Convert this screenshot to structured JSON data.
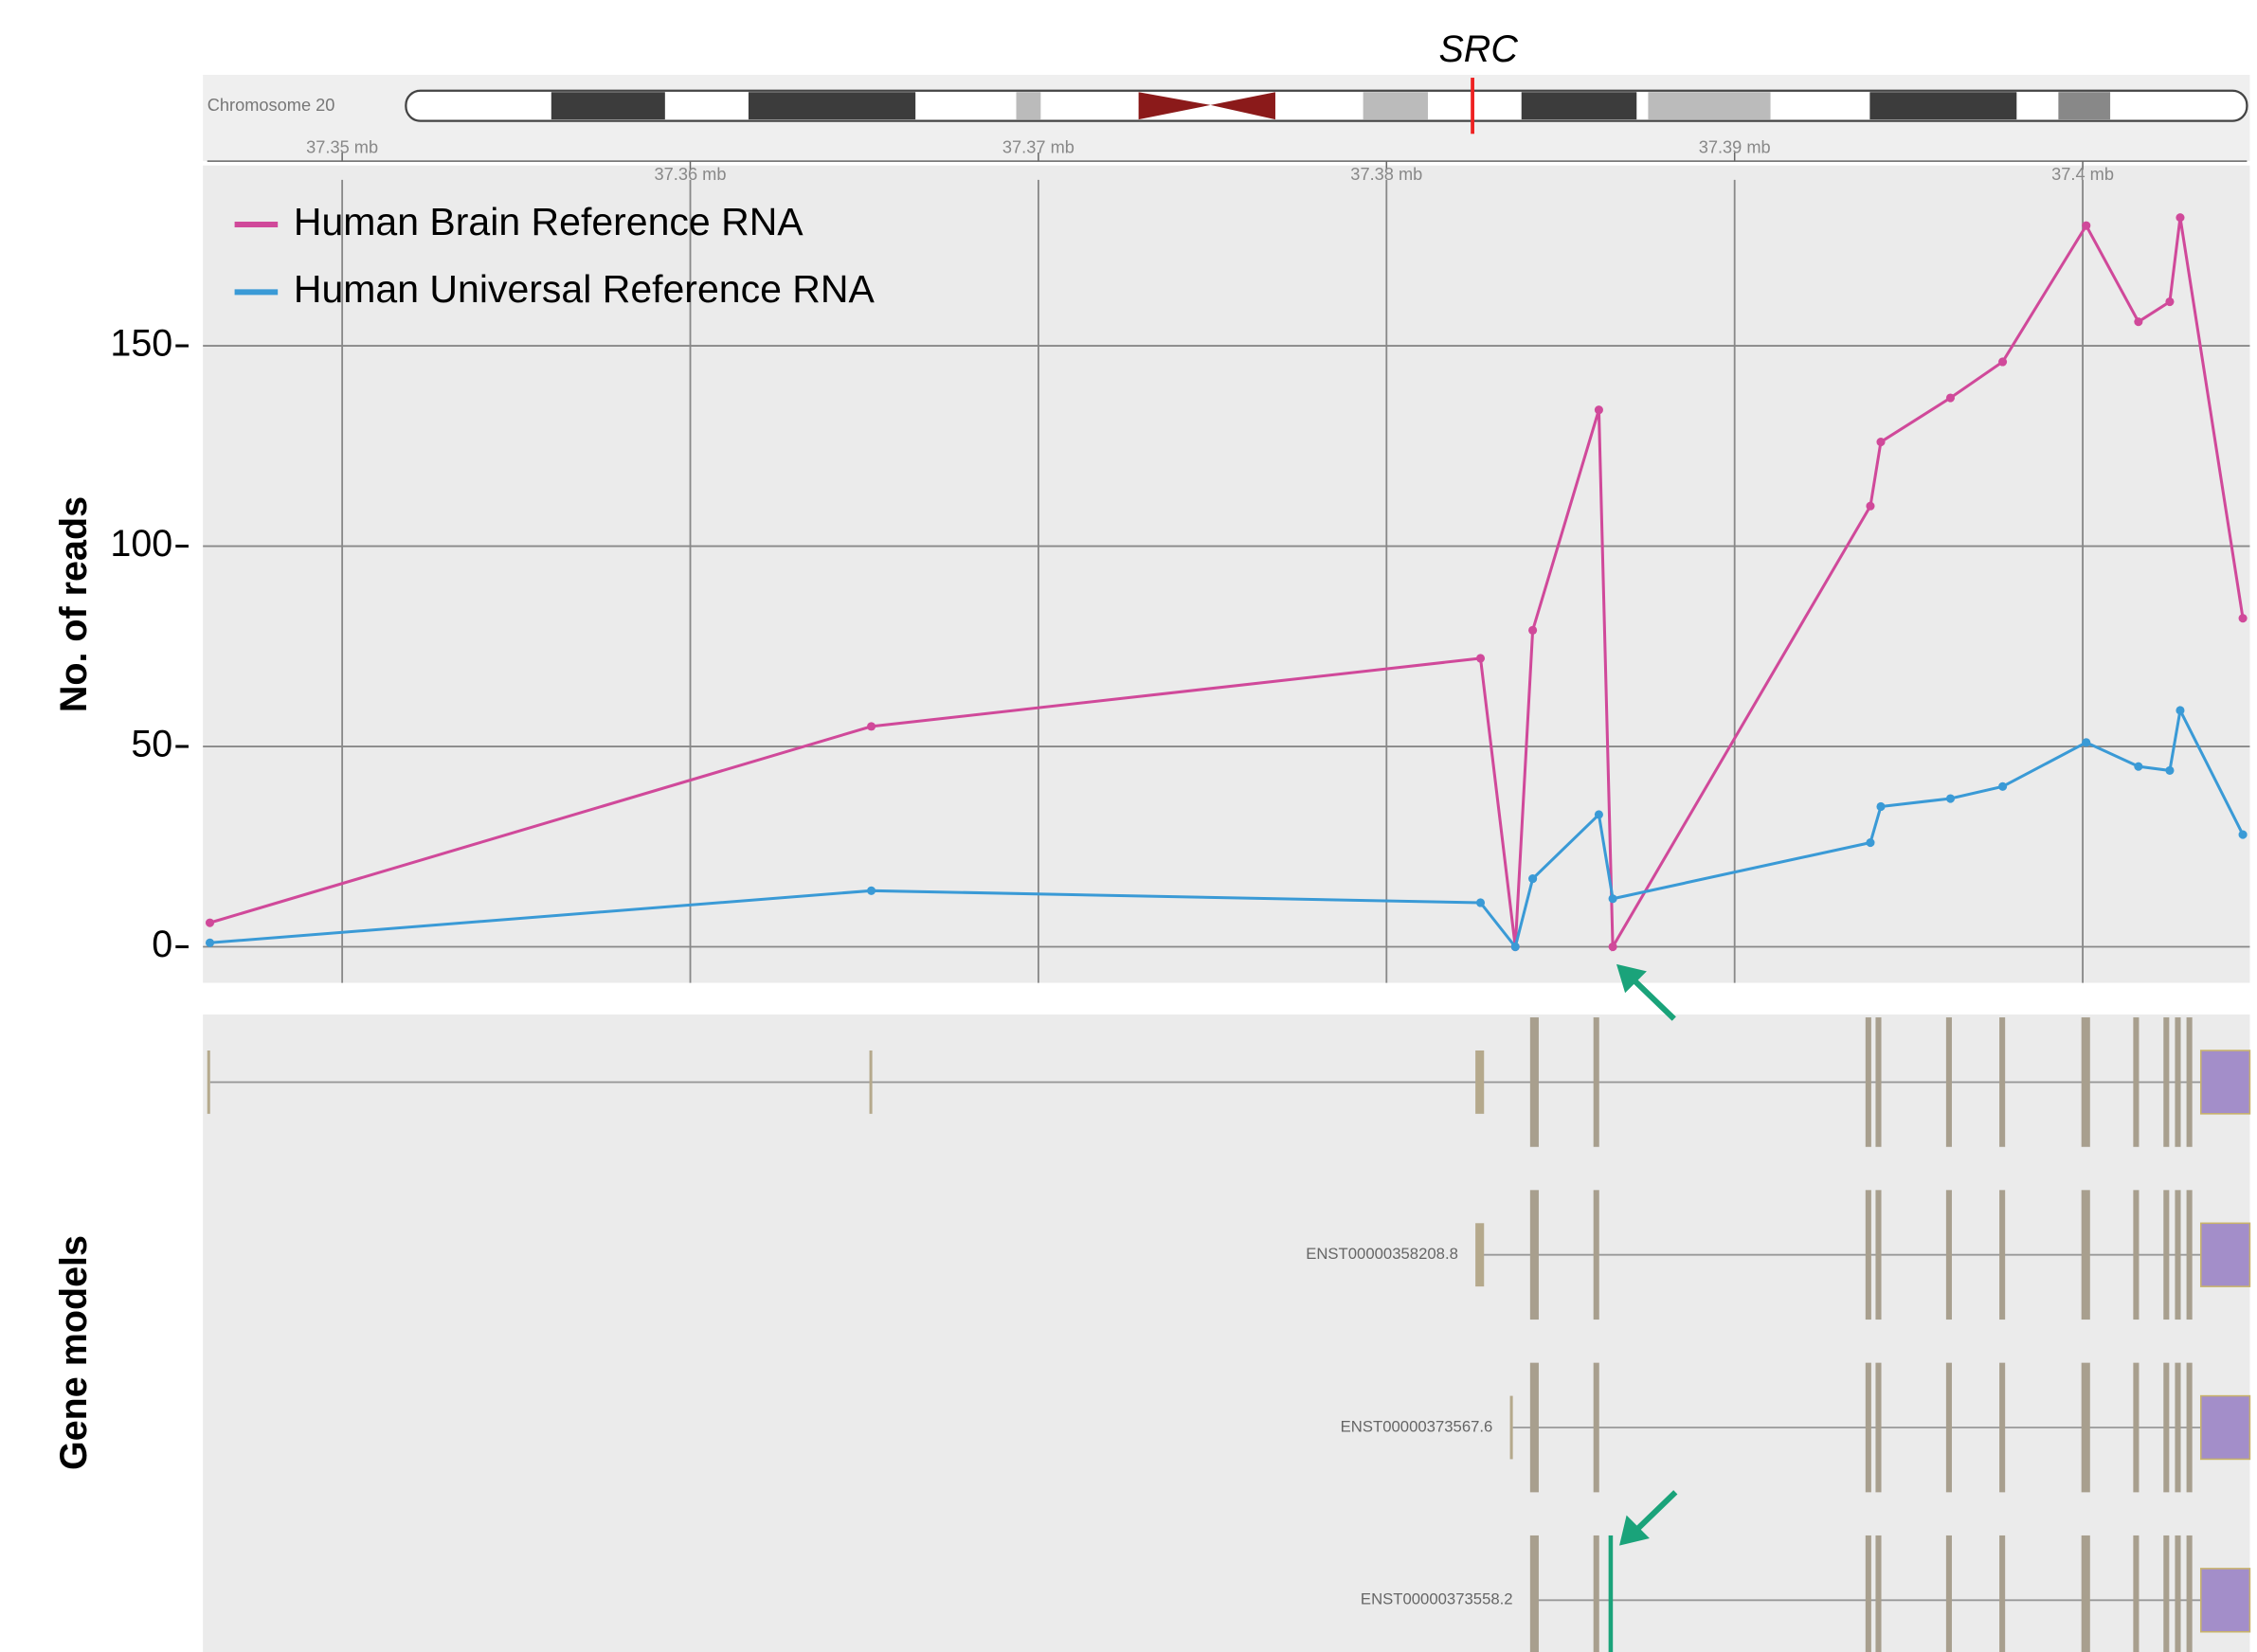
{
  "chart_data": {
    "type": "line",
    "y_label": "No. of reads",
    "x": [
      37.3462,
      37.3652,
      37.3827,
      37.3837,
      37.3842,
      37.3861,
      37.3865,
      37.3939,
      37.3942,
      37.3962,
      37.3977,
      37.4001,
      37.4016,
      37.4025,
      37.4028,
      37.4046
    ],
    "series": [
      {
        "name": "Human Brain Reference RNA",
        "color": "#d0499a",
        "values": [
          6,
          55,
          72,
          0,
          79,
          134,
          0,
          110,
          126,
          137,
          146,
          180,
          156,
          161,
          182,
          82
        ]
      },
      {
        "name": "Human Universal Reference RNA",
        "color": "#3a9ad6",
        "values": [
          1,
          14,
          11,
          0,
          17,
          33,
          12,
          26,
          35,
          37,
          40,
          51,
          45,
          44,
          59,
          28
        ]
      }
    ],
    "xlim": [
      37.346,
      37.4048
    ],
    "xticks": [
      {
        "value": 37.35,
        "label": "37.35 mb"
      },
      {
        "value": 37.36,
        "label": "37.36 mb"
      },
      {
        "value": 37.37,
        "label": "37.37 mb"
      },
      {
        "value": 37.38,
        "label": "37.38 mb"
      },
      {
        "value": 37.39,
        "label": "37.39 mb"
      },
      {
        "value": 37.4,
        "label": "37.4 mb"
      }
    ],
    "ylim": [
      -9,
      195
    ],
    "yticks": [
      0,
      50,
      100,
      150
    ],
    "grid": true,
    "legend": "top-left"
  },
  "ideogram": {
    "label": "Chromosome 20",
    "gene": "SRC"
  },
  "gene_models": {
    "label": "Gene models",
    "transcripts": [
      "ENST00000358208.8",
      "ENST00000373567.6",
      "ENST00000373558.2"
    ]
  }
}
